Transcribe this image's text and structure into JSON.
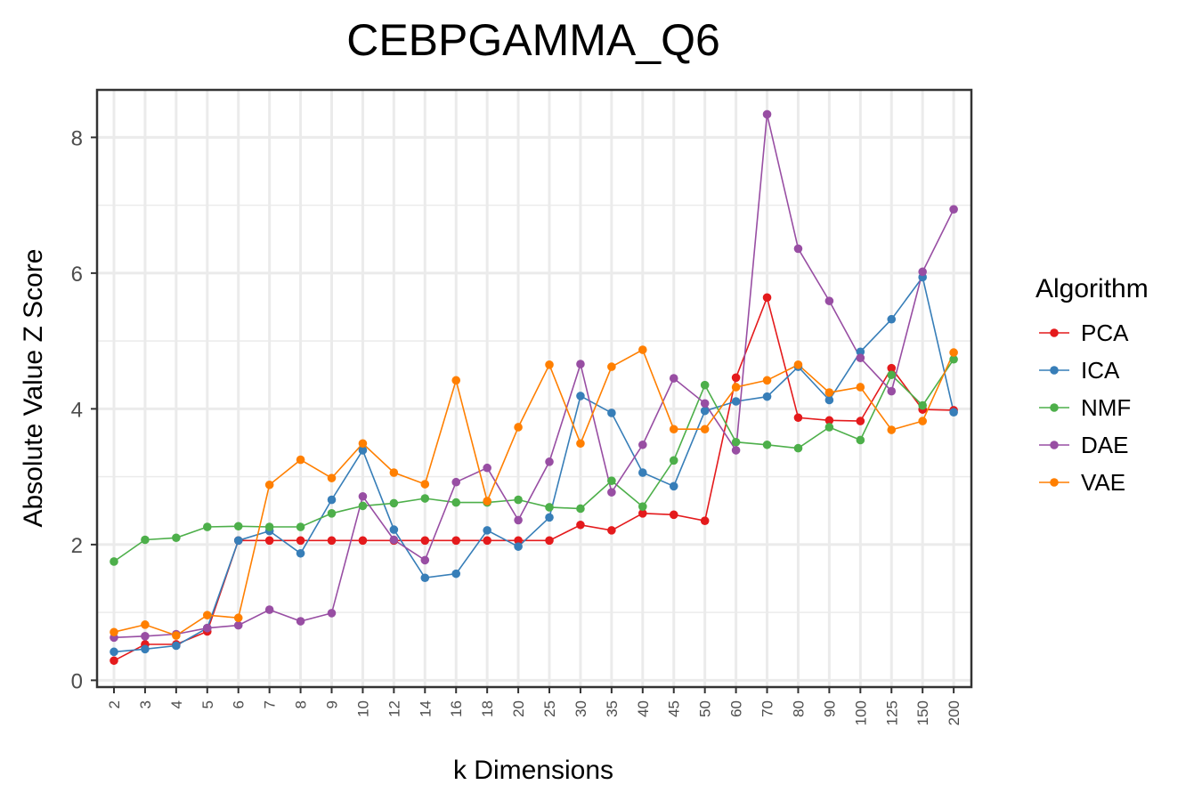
{
  "chart_data": {
    "type": "line",
    "title": "CEBPGAMMA_Q6",
    "xlabel": "k Dimensions",
    "ylabel": "Absolute Value Z Score",
    "categories": [
      "2",
      "3",
      "4",
      "5",
      "6",
      "7",
      "8",
      "9",
      "10",
      "12",
      "14",
      "16",
      "18",
      "20",
      "25",
      "30",
      "35",
      "40",
      "45",
      "50",
      "60",
      "70",
      "80",
      "90",
      "100",
      "125",
      "150",
      "200"
    ],
    "ylim": [
      -0.1,
      8.7
    ],
    "yticks": [
      "0",
      "2",
      "4",
      "6",
      "8"
    ],
    "grid": true,
    "legend": {
      "title": "Algorithm",
      "position": "right"
    },
    "series": [
      {
        "name": "PCA",
        "color": "#e41a1c",
        "values": [
          0.29,
          0.53,
          0.53,
          0.72,
          2.06,
          2.06,
          2.06,
          2.06,
          2.06,
          2.06,
          2.06,
          2.06,
          2.06,
          2.06,
          2.06,
          2.29,
          2.21,
          2.46,
          2.44,
          2.35,
          4.46,
          5.64,
          3.87,
          3.83,
          3.82,
          4.6,
          3.99,
          3.98
        ]
      },
      {
        "name": "ICA",
        "color": "#377eb8",
        "values": [
          0.42,
          0.46,
          0.51,
          0.77,
          2.06,
          2.2,
          1.87,
          2.66,
          3.39,
          2.22,
          1.51,
          1.57,
          2.21,
          1.97,
          2.4,
          4.19,
          3.94,
          3.06,
          2.86,
          3.97,
          4.11,
          4.18,
          4.62,
          4.13,
          4.84,
          5.32,
          5.94,
          3.95
        ]
      },
      {
        "name": "NMF",
        "color": "#4daf4a",
        "values": [
          1.75,
          2.07,
          2.1,
          2.26,
          2.27,
          2.26,
          2.26,
          2.46,
          2.57,
          2.61,
          2.68,
          2.62,
          2.62,
          2.66,
          2.55,
          2.53,
          2.94,
          2.56,
          3.24,
          4.35,
          3.51,
          3.47,
          3.42,
          3.73,
          3.54,
          4.5,
          4.05,
          4.73
        ]
      },
      {
        "name": "DAE",
        "color": "#984ea3",
        "values": [
          0.63,
          0.65,
          0.68,
          0.77,
          0.81,
          1.04,
          0.87,
          0.99,
          2.71,
          2.07,
          1.77,
          2.92,
          3.13,
          2.36,
          3.22,
          4.66,
          2.77,
          3.47,
          4.45,
          4.08,
          3.39,
          8.34,
          6.36,
          5.59,
          4.75,
          4.26,
          6.02,
          6.94
        ]
      },
      {
        "name": "VAE",
        "color": "#ff7f00",
        "values": [
          0.71,
          0.82,
          0.66,
          0.96,
          0.92,
          2.88,
          3.25,
          2.98,
          3.49,
          3.06,
          2.89,
          4.42,
          2.64,
          3.73,
          4.65,
          3.49,
          4.62,
          4.87,
          3.7,
          3.7,
          4.32,
          4.42,
          4.65,
          4.24,
          4.32,
          3.69,
          3.82,
          4.83
        ]
      }
    ]
  }
}
